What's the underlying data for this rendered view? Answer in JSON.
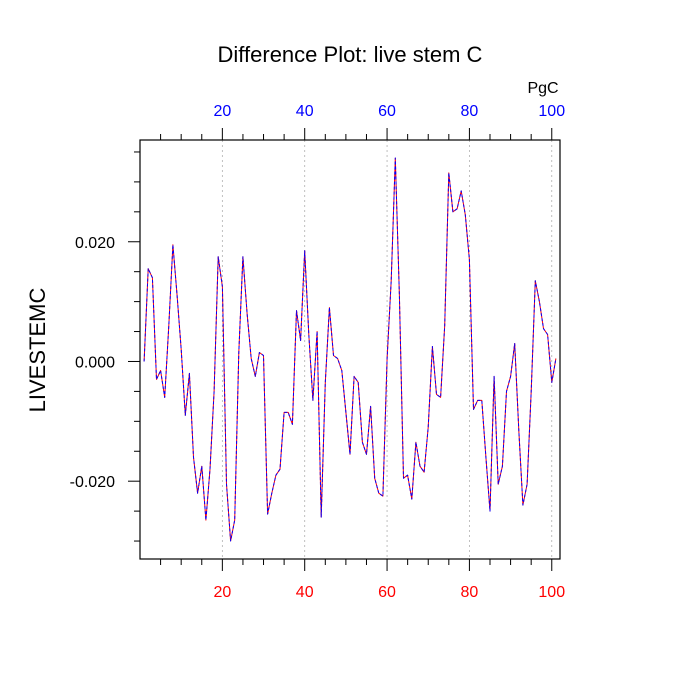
{
  "chart_data": {
    "type": "line",
    "title": "Difference Plot: live stem C",
    "ylabel": "LIVESTEMC",
    "units_label": "PgC",
    "xlim": [
      0,
      102
    ],
    "ylim": [
      -0.033,
      0.037
    ],
    "grid": "vertical-dashed",
    "x_ticks": [
      20,
      40,
      60,
      80,
      100
    ],
    "x_tick_labels": [
      "20",
      "40",
      "60",
      "80",
      "100"
    ],
    "y_ticks": [
      -0.02,
      0.0,
      0.02
    ],
    "y_tick_labels": [
      "-0.020",
      "0.000",
      "0.020"
    ],
    "colors": {
      "bottom_ticks": "#ff0000",
      "top_ticks": "#0000ff",
      "series_a": "#ff0000",
      "series_b": "#0000ff"
    },
    "series": [
      {
        "values": [
          [
            1,
            0.0
          ],
          [
            2,
            0.0155
          ],
          [
            3,
            0.014
          ],
          [
            4,
            -0.003
          ],
          [
            5,
            -0.0015
          ],
          [
            6,
            -0.006
          ],
          [
            7,
            0.006
          ],
          [
            8,
            0.0195
          ],
          [
            9,
            0.011
          ],
          [
            10,
            0.002
          ],
          [
            11,
            -0.009
          ],
          [
            12,
            -0.002
          ],
          [
            13,
            -0.016
          ],
          [
            14,
            -0.022
          ],
          [
            15,
            -0.0175
          ],
          [
            16,
            -0.0265
          ],
          [
            17,
            -0.018
          ],
          [
            18,
            -0.005
          ],
          [
            19,
            0.0175
          ],
          [
            20,
            0.0125
          ],
          [
            21,
            -0.0205
          ],
          [
            22,
            -0.03
          ],
          [
            23,
            -0.0265
          ],
          [
            24,
            0.0015
          ],
          [
            25,
            0.0175
          ],
          [
            26,
            0.008
          ],
          [
            27,
            0.0005
          ],
          [
            28,
            -0.0025
          ],
          [
            29,
            0.0015
          ],
          [
            30,
            0.001
          ],
          [
            31,
            -0.0255
          ],
          [
            32,
            -0.022
          ],
          [
            33,
            -0.019
          ],
          [
            34,
            -0.018
          ],
          [
            35,
            -0.0085
          ],
          [
            36,
            -0.0085
          ],
          [
            37,
            -0.0105
          ],
          [
            38,
            0.0085
          ],
          [
            39,
            0.0035
          ],
          [
            40,
            0.0185
          ],
          [
            41,
            0.0045
          ],
          [
            42,
            -0.0065
          ],
          [
            43,
            0.005
          ],
          [
            44,
            -0.026
          ],
          [
            45,
            -0.0035
          ],
          [
            46,
            0.009
          ],
          [
            47,
            0.001
          ],
          [
            48,
            0.0005
          ],
          [
            49,
            -0.0015
          ],
          [
            50,
            -0.0085
          ],
          [
            51,
            -0.0155
          ],
          [
            52,
            -0.0025
          ],
          [
            53,
            -0.0035
          ],
          [
            54,
            -0.0135
          ],
          [
            55,
            -0.0155
          ],
          [
            56,
            -0.0075
          ],
          [
            57,
            -0.0195
          ],
          [
            58,
            -0.022
          ],
          [
            59,
            -0.0225
          ],
          [
            60,
            0.0005
          ],
          [
            61,
            0.0135
          ],
          [
            62,
            0.034
          ],
          [
            63,
            0.011
          ],
          [
            64,
            -0.0195
          ],
          [
            65,
            -0.019
          ],
          [
            66,
            -0.023
          ],
          [
            67,
            -0.0135
          ],
          [
            68,
            -0.0175
          ],
          [
            69,
            -0.0185
          ],
          [
            70,
            -0.011
          ],
          [
            71,
            0.0025
          ],
          [
            72,
            -0.0055
          ],
          [
            73,
            -0.006
          ],
          [
            74,
            0.006
          ],
          [
            75,
            0.0315
          ],
          [
            76,
            0.025
          ],
          [
            77,
            0.0255
          ],
          [
            78,
            0.0285
          ],
          [
            79,
            0.0245
          ],
          [
            80,
            0.017
          ],
          [
            81,
            -0.008
          ],
          [
            82,
            -0.0065
          ],
          [
            83,
            -0.0065
          ],
          [
            84,
            -0.016
          ],
          [
            85,
            -0.025
          ],
          [
            86,
            -0.0025
          ],
          [
            87,
            -0.0205
          ],
          [
            88,
            -0.0175
          ],
          [
            89,
            -0.005
          ],
          [
            90,
            -0.0025
          ],
          [
            91,
            0.003
          ],
          [
            92,
            -0.0115
          ],
          [
            93,
            -0.024
          ],
          [
            94,
            -0.0205
          ],
          [
            95,
            -0.005
          ],
          [
            96,
            0.0135
          ],
          [
            97,
            0.01
          ],
          [
            98,
            0.0055
          ],
          [
            99,
            0.0045
          ],
          [
            100,
            -0.0035
          ],
          [
            101,
            0.0005
          ]
        ]
      }
    ]
  }
}
